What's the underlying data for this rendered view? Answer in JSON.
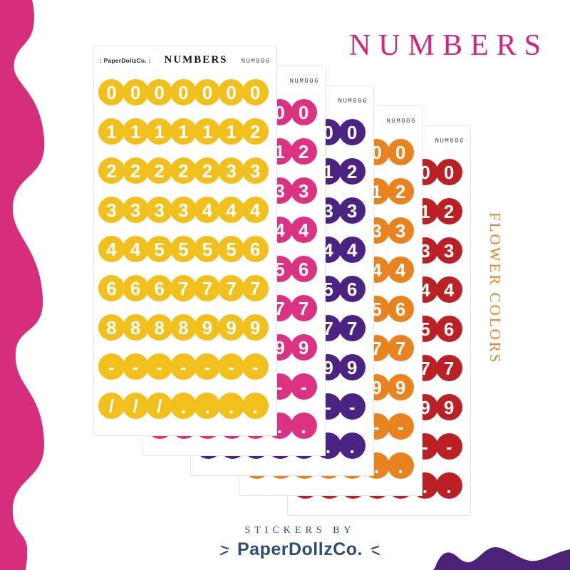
{
  "page": {
    "background": "#ffffff",
    "title": "NUMBERS",
    "title_color": "#cf2480",
    "side_label": "FLOWER COLORS",
    "side_label_color": "#e8832b",
    "footer": {
      "line1": "STICKERS BY",
      "brand": "PaperDollzCo.",
      "text_color": "#2f4c79"
    },
    "decorations": {
      "left_wave_color": "#d62e7d",
      "bottom_right_wave_color": "#4b2278"
    }
  },
  "sheet_template": {
    "brand_logo": ": PaperDollzCo. :",
    "title": "NUMBERS",
    "code": "NUM006",
    "rows": [
      [
        "0",
        "0",
        "0",
        "0",
        "0",
        "0",
        "0"
      ],
      [
        "1",
        "1",
        "1",
        "1",
        "1",
        "1",
        "2"
      ],
      [
        "2",
        "2",
        "2",
        "2",
        "2",
        "3",
        "3"
      ],
      [
        "3",
        "3",
        "3",
        "3",
        "4",
        "4",
        "4"
      ],
      [
        "4",
        "4",
        "5",
        "5",
        "5",
        "5",
        "6"
      ],
      [
        "6",
        "6",
        "6",
        "7",
        "7",
        "7",
        "7"
      ],
      [
        "8",
        "8",
        "8",
        "8",
        "9",
        "9",
        "9"
      ],
      [
        "-",
        "-",
        "-",
        "-",
        "-",
        "-",
        "-"
      ],
      [
        "/",
        "/",
        "/",
        ".",
        ".",
        ".",
        "."
      ]
    ]
  },
  "sheets": [
    {
      "name": "yellow",
      "circle_color": "#f2c01c"
    },
    {
      "name": "pink",
      "circle_color": "#dc3283"
    },
    {
      "name": "purple",
      "circle_color": "#4a2383"
    },
    {
      "name": "orange",
      "circle_color": "#e8831f"
    },
    {
      "name": "red",
      "circle_color": "#bb2025"
    }
  ],
  "layout_note": ""
}
